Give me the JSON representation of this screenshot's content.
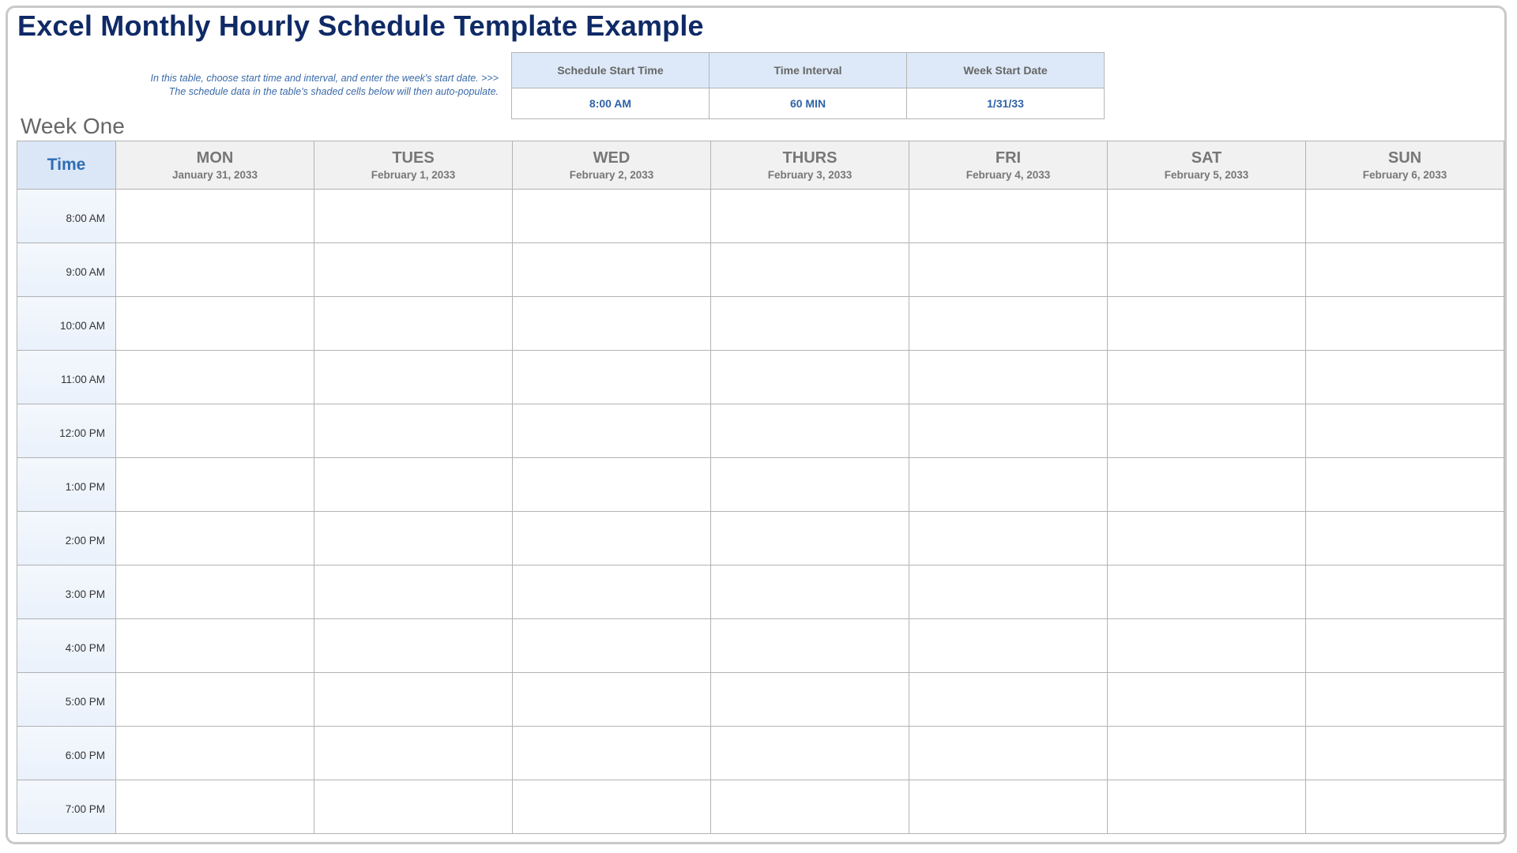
{
  "title": "Excel Monthly Hourly Schedule Template Example",
  "instructions": [
    "In this table, choose start time and interval, and enter the week's start date. >>>",
    "The schedule data in the table's shaded cells below will then auto-populate."
  ],
  "settings": {
    "headers": [
      "Schedule Start Time",
      "Time Interval",
      "Week Start Date"
    ],
    "values": [
      "8:00 AM",
      "60 MIN",
      "1/31/33"
    ]
  },
  "week_label": "Week One",
  "grid": {
    "time_header": "Time",
    "days": [
      {
        "name": "MON",
        "date": "January 31, 2033"
      },
      {
        "name": "TUES",
        "date": "February 1, 2033"
      },
      {
        "name": "WED",
        "date": "February 2, 2033"
      },
      {
        "name": "THURS",
        "date": "February 3, 2033"
      },
      {
        "name": "FRI",
        "date": "February 4, 2033"
      },
      {
        "name": "SAT",
        "date": "February 5, 2033"
      },
      {
        "name": "SUN",
        "date": "February 6, 2033"
      }
    ],
    "times": [
      "8:00 AM",
      "9:00 AM",
      "10:00 AM",
      "11:00 AM",
      "12:00 PM",
      "1:00 PM",
      "2:00 PM",
      "3:00 PM",
      "4:00 PM",
      "5:00 PM",
      "6:00 PM",
      "7:00 PM"
    ]
  },
  "colors": {
    "title": "#0f2a66",
    "accent_blue": "#2f63a6",
    "header_blue_bg": "#dde9f8",
    "day_header_bg": "#f1f1f1"
  }
}
